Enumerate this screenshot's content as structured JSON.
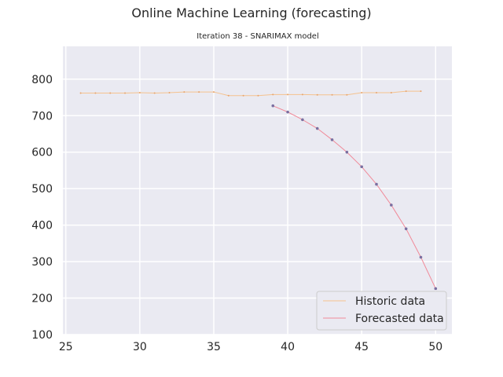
{
  "chart_data": {
    "type": "line",
    "title": "Online Machine Learning (forecasting)",
    "subtitle": "Iteration 38 - SNARIMAX model",
    "xlabel": "",
    "ylabel": "",
    "xlim": [
      24.8,
      51.1
    ],
    "ylim": [
      100,
      890
    ],
    "x_ticks": [
      25,
      30,
      35,
      40,
      45,
      50
    ],
    "y_ticks": [
      100,
      200,
      300,
      400,
      500,
      600,
      700,
      800
    ],
    "grid": true,
    "legend_position": "lower-right",
    "series": [
      {
        "name": "Historic data",
        "color": "#f5c28e",
        "marker_color": "#e8a56e",
        "x": [
          26,
          27,
          28,
          29,
          30,
          31,
          32,
          33,
          34,
          35,
          36,
          37,
          38,
          39,
          40,
          41,
          42,
          43,
          44,
          45,
          46,
          47,
          48,
          49
        ],
        "values": [
          762,
          762,
          762,
          762,
          763,
          762,
          763,
          765,
          765,
          765,
          755,
          755,
          755,
          758,
          758,
          758,
          757,
          757,
          757,
          763,
          763,
          763,
          767,
          767
        ]
      },
      {
        "name": "Forecasted data",
        "color": "#f08a99",
        "marker_color": "#7a6fa0",
        "x": [
          39,
          40,
          41,
          42,
          43,
          44,
          45,
          46,
          47,
          48,
          49,
          50
        ],
        "values": [
          727,
          710,
          689,
          665,
          634,
          600,
          560,
          512,
          455,
          390,
          312,
          226
        ]
      }
    ]
  }
}
